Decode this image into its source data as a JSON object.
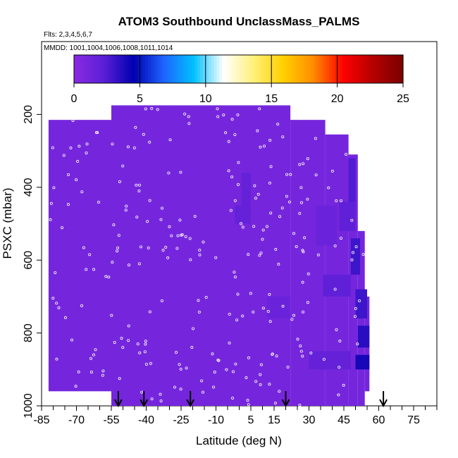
{
  "chart_data": {
    "type": "heatmap",
    "title": "ATOM3 Southbound UnclassMass_PALMS",
    "subtitle_flights": "Flts: 2,3,4,5,6,7",
    "subtitle_dates": "MMDD: 1001,1004,1006,1008,1011,1014",
    "xlabel": "Latitude (deg N)",
    "ylabel": "PSXC (mbar)",
    "xlim": [
      -85,
      85
    ],
    "ylim": [
      1000,
      0
    ],
    "x_ticks": [
      -85,
      -70,
      -55,
      -40,
      -25,
      -10,
      5,
      15,
      30,
      45,
      60,
      75
    ],
    "y_ticks": [
      200,
      400,
      600,
      800,
      1000
    ],
    "colorbar": {
      "min": 0,
      "max": 25,
      "ticks": [
        0,
        5,
        10,
        15,
        20,
        25
      ],
      "colors": [
        "#8a2be2",
        "#5a1fd6",
        "#0000b0",
        "#1e64ff",
        "#00c0ff",
        "#ffffff",
        "#fff07a",
        "#ffd000",
        "#ff8c00",
        "#ff0000",
        "#b40000",
        "#7a0000"
      ]
    },
    "base_value": 1,
    "field_regions": [
      {
        "lat": [
          -82,
          -55
        ],
        "pres": [
          215,
          960
        ]
      },
      {
        "lat": [
          -55,
          22
        ],
        "pres": [
          175,
          1000
        ]
      },
      {
        "lat": [
          22,
          37
        ],
        "pres": [
          215,
          1000
        ]
      },
      {
        "lat": [
          37,
          47
        ],
        "pres": [
          255,
          1000
        ]
      },
      {
        "lat": [
          47,
          51
        ],
        "pres": [
          310,
          1000
        ]
      },
      {
        "lat": [
          51,
          54
        ],
        "pres": [
          520,
          1000
        ]
      },
      {
        "lat": [
          54,
          56
        ],
        "pres": [
          700,
          960
        ]
      }
    ],
    "highlights": [
      {
        "lat": [
          50,
          56
        ],
        "pres": [
          860,
          900
        ],
        "value": 4
      },
      {
        "lat": [
          51,
          56
        ],
        "pres": [
          780,
          840
        ],
        "value": 3.5
      },
      {
        "lat": [
          50,
          55
        ],
        "pres": [
          680,
          760
        ],
        "value": 3
      },
      {
        "lat": [
          48,
          52
        ],
        "pres": [
          540,
          640
        ],
        "value": 3
      },
      {
        "lat": [
          47,
          50
        ],
        "pres": [
          320,
          440
        ],
        "value": 2.5
      },
      {
        "lat": [
          36,
          48
        ],
        "pres": [
          640,
          700
        ],
        "value": 2
      },
      {
        "lat": [
          43,
          50
        ],
        "pres": [
          440,
          520
        ],
        "value": 2
      },
      {
        "lat": [
          -2,
          5
        ],
        "pres": [
          450,
          500
        ],
        "value": 1.8
      },
      {
        "lat": [
          1,
          5
        ],
        "pres": [
          360,
          450
        ],
        "value": 1.8
      },
      {
        "lat": [
          30,
          48
        ],
        "pres": [
          850,
          900
        ],
        "value": 1.8
      },
      {
        "lat": [
          33,
          42
        ],
        "pres": [
          450,
          560
        ],
        "value": 1.5
      },
      {
        "lat": [
          12,
          22
        ],
        "pres": [
          700,
          760
        ],
        "value": 1.5
      }
    ],
    "flight_arrows_lat": [
      -52,
      -41,
      -21,
      20,
      62
    ]
  }
}
